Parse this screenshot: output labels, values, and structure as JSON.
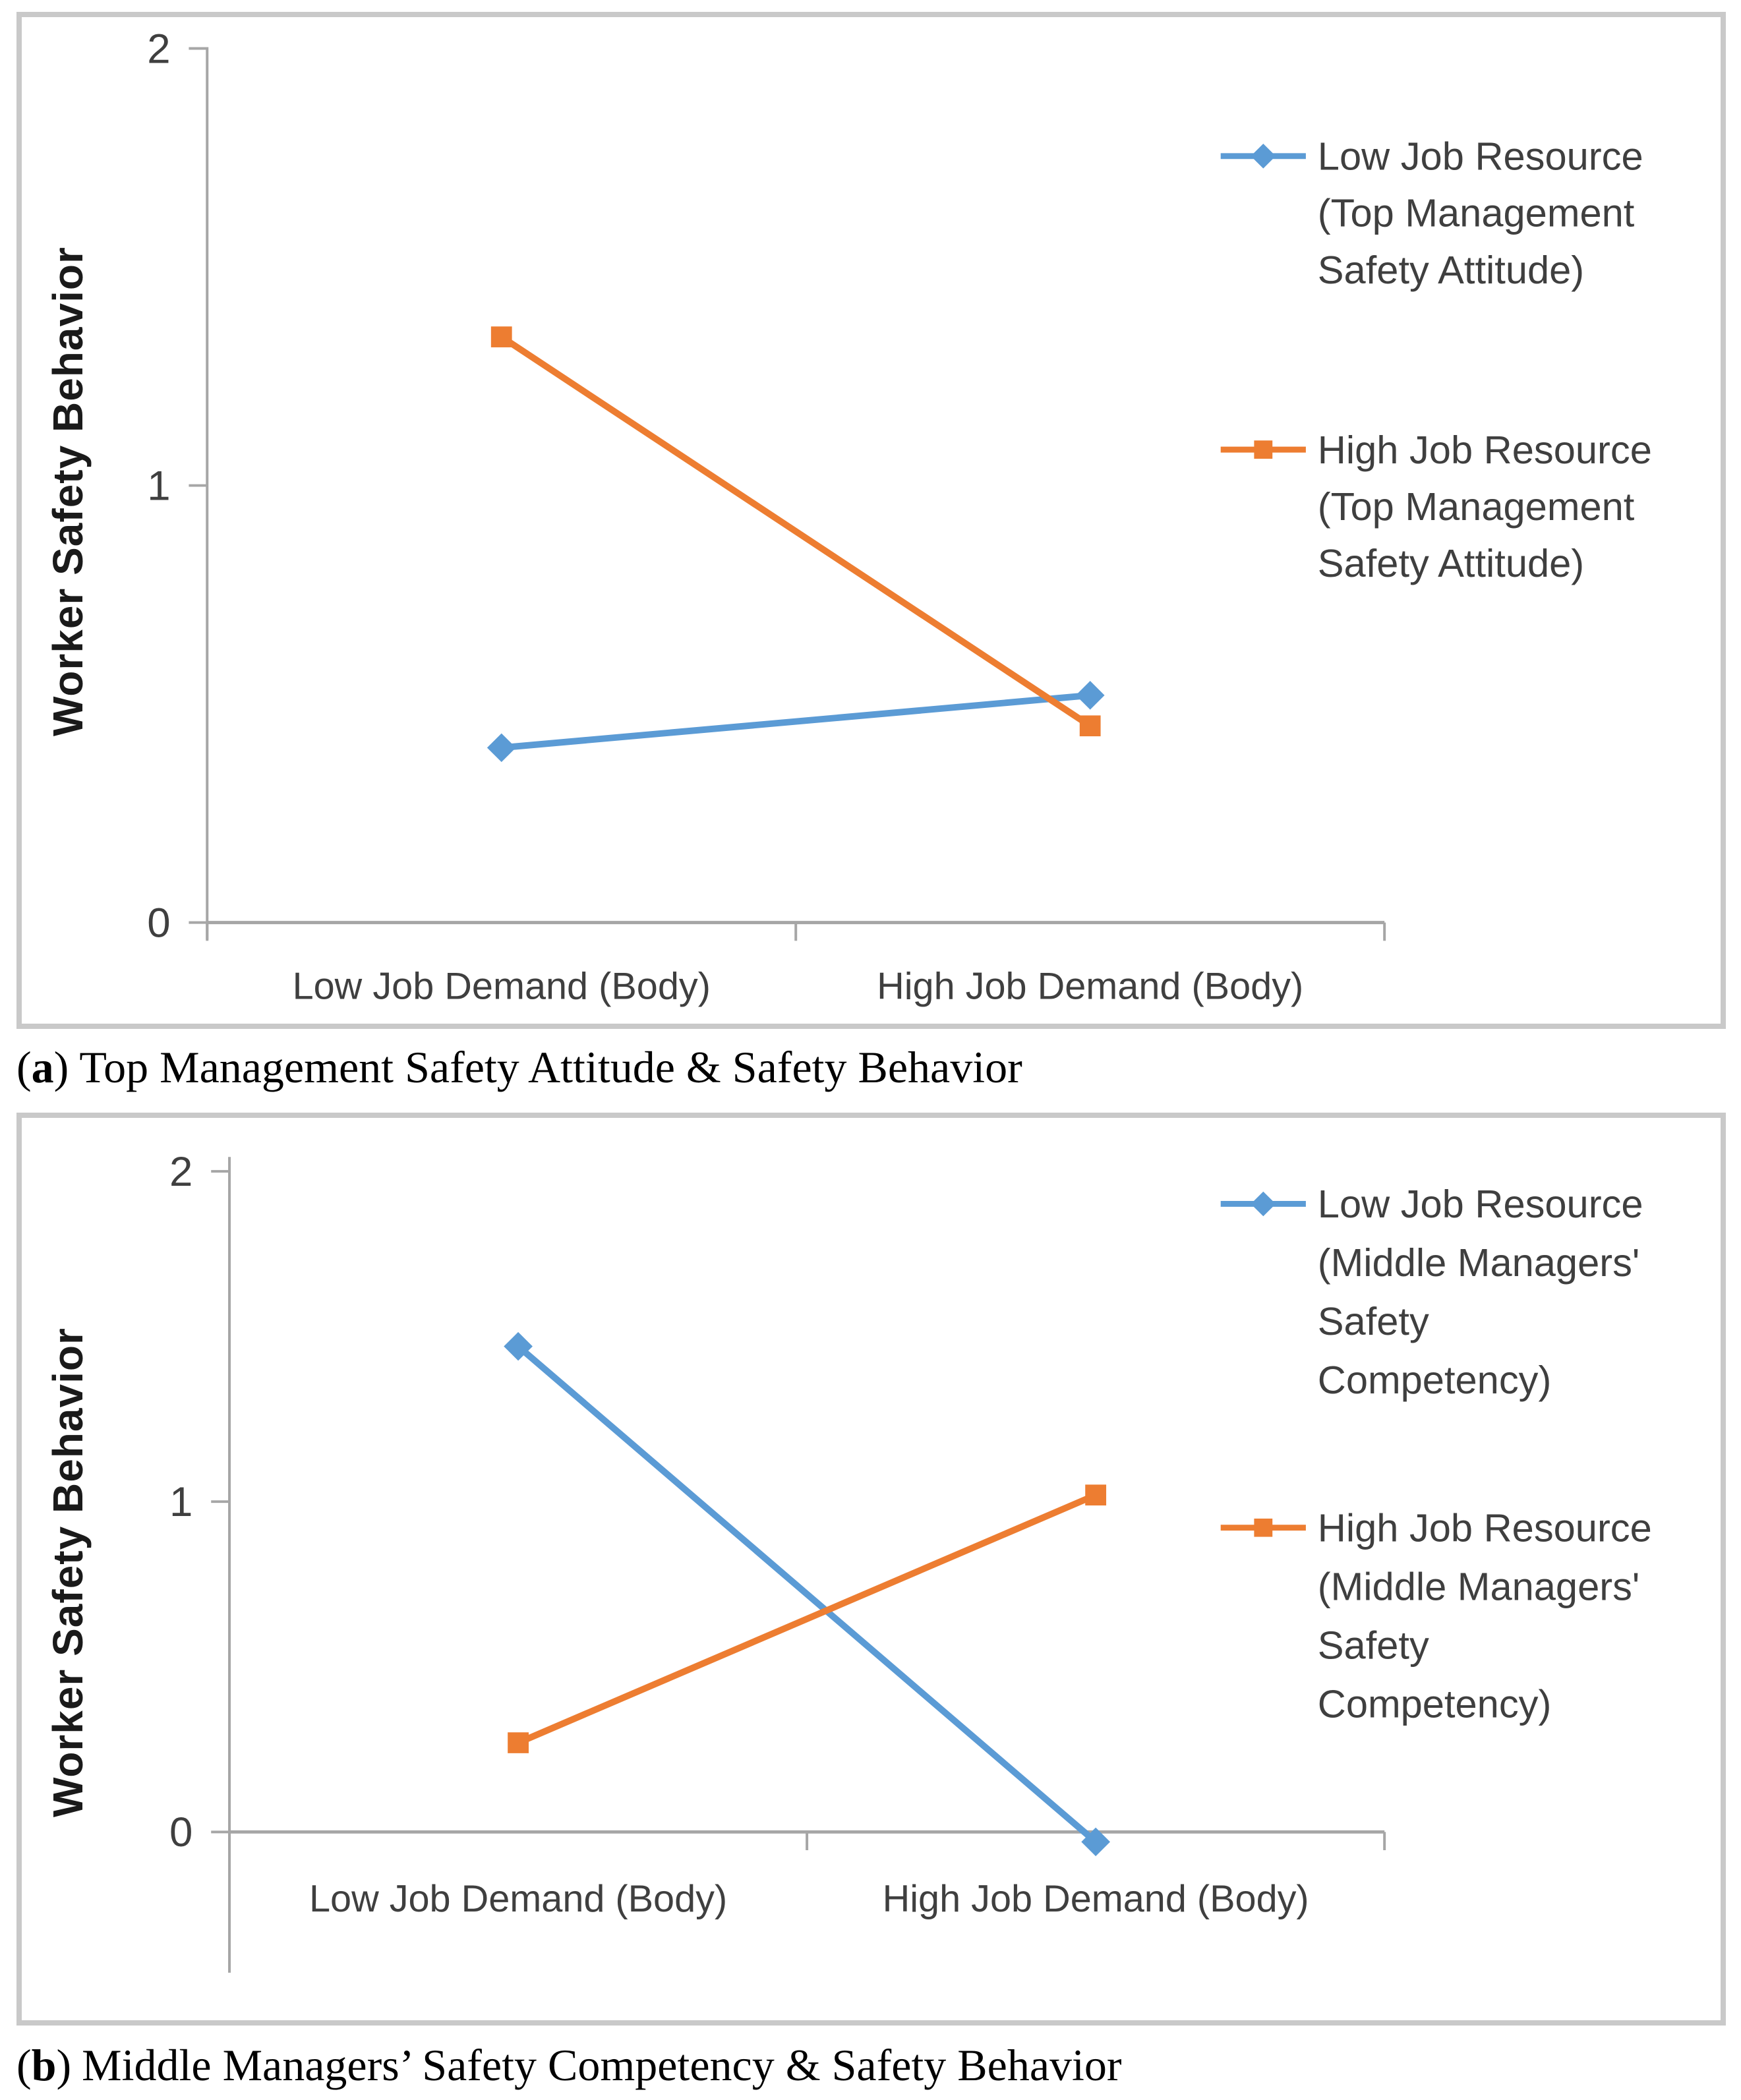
{
  "page": {
    "background": "#ffffff"
  },
  "colors": {
    "series_blue": "#5B9BD5",
    "series_orange": "#ED7D31",
    "axis_gray": "#a6a6a6",
    "tick_text": "#3f3f3f",
    "panel_border": "#c9c9c9"
  },
  "captions": {
    "a": {
      "open": "(",
      "letter": "a",
      "close": ")",
      "text": "Top Management Safety Attitude & Safety Behavior"
    },
    "b": {
      "open": "(",
      "letter": "b",
      "close": ")",
      "text": "Middle Managers’ Safety Competency & Safety Behavior"
    }
  },
  "chart_data": [
    {
      "type": "line",
      "categories": [
        "Low Job Demand (Body)",
        "High Job Demand (Body)"
      ],
      "xlabel": "",
      "ylabel": "Worker Safety Behavior",
      "yticks": [
        0,
        1,
        2
      ],
      "ylim": [
        0,
        2
      ],
      "grid": false,
      "legend_position": "right",
      "series": [
        {
          "name": "Low Job Resource (Top Management Safety Attitude)",
          "label_lines": [
            "Low Job Resource",
            "(Top Management",
            "Safety Attitude)"
          ],
          "color": "#5B9BD5",
          "marker": "diamond",
          "values": [
            0.4,
            0.52
          ]
        },
        {
          "name": "High Job Resource (Top Management Safety Attitude)",
          "label_lines": [
            "High Job Resource",
            "(Top Management",
            "Safety Attitude)"
          ],
          "color": "#ED7D31",
          "marker": "square",
          "values": [
            1.34,
            0.45
          ]
        }
      ]
    },
    {
      "type": "line",
      "categories": [
        "Low Job Demand (Body)",
        "High Job Demand (Body)"
      ],
      "xlabel": "",
      "ylabel": "Worker Safety Behavior",
      "yticks": [
        0,
        1,
        2
      ],
      "ylim": [
        -0.1,
        2
      ],
      "grid": false,
      "legend_position": "right",
      "series": [
        {
          "name": "Low Job Resource (Middle Managers' Safety Competency)",
          "label_lines": [
            "Low Job Resource",
            "(Middle Managers'",
            "Safety",
            "Competency)"
          ],
          "color": "#5B9BD5",
          "marker": "diamond",
          "values": [
            1.47,
            -0.03
          ]
        },
        {
          "name": "High Job Resource (Middle Managers' Safety Competency)",
          "label_lines": [
            "High Job Resource",
            "(Middle Managers'",
            "Safety",
            "Competency)"
          ],
          "color": "#ED7D31",
          "marker": "square",
          "values": [
            0.27,
            1.02
          ]
        }
      ]
    }
  ]
}
